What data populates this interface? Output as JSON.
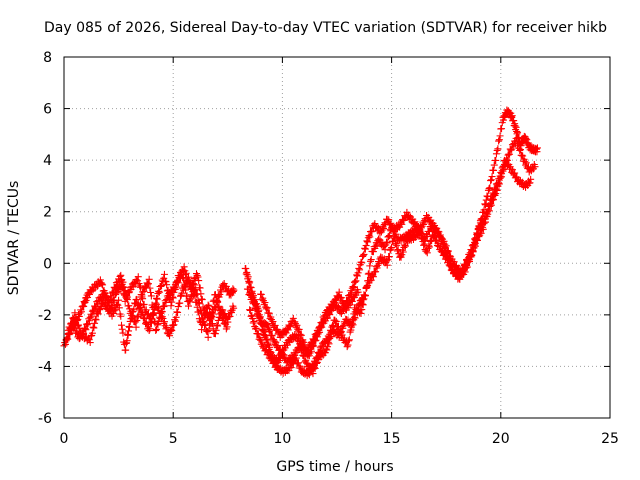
{
  "chart_data": {
    "type": "scatter",
    "title": "Day 085 of 2026, Sidereal Day-to-day VTEC variation (SDTVAR) for receiver hikb",
    "xlabel": "GPS time / hours",
    "ylabel": "SDTVAR / TECUs",
    "xlim": [
      0,
      25
    ],
    "ylim": [
      -6,
      8
    ],
    "xticks": [
      "0",
      "5",
      "10",
      "15",
      "20",
      "25"
    ],
    "yticks": [
      "-6",
      "-4",
      "-2",
      "0",
      "2",
      "4",
      "6",
      "8"
    ],
    "grid": true,
    "marker": "+",
    "series": [
      {
        "name": "SDTVAR",
        "color": "#ff0000",
        "traces": [
          {
            "x": [
              0.0,
              0.3,
              0.6,
              0.9,
              1.1,
              1.4,
              1.7,
              2.0,
              2.3,
              2.6,
              2.8,
              3.1,
              3.4,
              3.7,
              4.0,
              4.3,
              4.6,
              4.9,
              5.2,
              5.5,
              5.8,
              6.1,
              6.4,
              6.7,
              7.0,
              7.3,
              7.6,
              7.8
            ],
            "y": [
              -3.2,
              -2.6,
              -2.2,
              -1.6,
              -1.2,
              -0.9,
              -0.7,
              -1.6,
              -1.0,
              -0.5,
              -1.4,
              -0.9,
              -0.6,
              -1.8,
              -2.2,
              -1.2,
              -0.5,
              -1.6,
              -0.6,
              -0.2,
              -1.0,
              -0.4,
              -1.8,
              -2.2,
              -1.5,
              -0.8,
              -1.2,
              -1.0
            ]
          },
          {
            "x": [
              0.1,
              0.4,
              0.7,
              1.0,
              1.3,
              1.6,
              1.9,
              2.2,
              2.5,
              2.8,
              3.0,
              3.3,
              3.6,
              3.9,
              4.2,
              4.5,
              4.8,
              5.1,
              5.4,
              5.7,
              6.0,
              6.3,
              6.6,
              6.9,
              7.2,
              7.5,
              7.8
            ],
            "y": [
              -3.0,
              -2.4,
              -2.9,
              -2.5,
              -1.9,
              -1.4,
              -1.2,
              -2.0,
              -1.5,
              -3.4,
              -2.4,
              -1.4,
              -2.0,
              -2.6,
              -1.6,
              -2.1,
              -2.8,
              -2.2,
              -1.1,
              -0.6,
              -1.3,
              -2.5,
              -1.6,
              -2.8,
              -1.8,
              -2.2,
              -1.6
            ]
          },
          {
            "x": [
              0.2,
              0.5,
              0.8,
              1.2,
              1.5,
              1.8,
              2.1,
              2.4,
              2.7,
              3.0,
              3.3,
              3.6,
              3.9,
              4.2,
              4.5,
              4.8,
              5.1,
              5.4,
              5.7,
              6.0,
              6.3,
              6.6,
              6.9,
              7.2,
              7.5
            ],
            "y": [
              -2.6,
              -2.0,
              -2.8,
              -3.0,
              -2.0,
              -1.5,
              -1.9,
              -1.1,
              -0.8,
              -1.8,
              -2.4,
              -1.1,
              -0.7,
              -2.6,
              -1.8,
              -1.2,
              -0.9,
              -0.4,
              -1.6,
              -0.9,
              -2.0,
              -2.8,
              -1.2,
              -2.0,
              -2.6
            ]
          },
          {
            "x": [
              8.3,
              8.5,
              8.7,
              8.9,
              9.1,
              9.3,
              9.5,
              9.8,
              10.0,
              10.3,
              10.6,
              10.9,
              11.2,
              11.5,
              11.8,
              12.1,
              12.4,
              12.7,
              13.0,
              13.3,
              13.6,
              13.9,
              14.2,
              14.5,
              14.8,
              15.1,
              15.4,
              15.7,
              16.0,
              16.3,
              16.6,
              16.9,
              17.2,
              17.5,
              17.8,
              18.1,
              18.3,
              18.6,
              18.9,
              19.2,
              19.5,
              19.8,
              20.1,
              20.3,
              20.5,
              20.7,
              20.9,
              21.1,
              21.3,
              21.5,
              21.7
            ],
            "y": [
              -0.2,
              -0.8,
              -1.4,
              -1.8,
              -2.6,
              -3.0,
              -3.6,
              -3.8,
              -3.4,
              -3.0,
              -2.8,
              -3.2,
              -3.6,
              -3.0,
              -2.4,
              -2.0,
              -1.6,
              -1.9,
              -1.4,
              -0.8,
              0.0,
              0.9,
              1.5,
              1.2,
              1.7,
              1.3,
              1.5,
              1.9,
              1.6,
              1.3,
              1.8,
              1.5,
              1.1,
              0.4,
              -0.3,
              -0.6,
              -0.2,
              0.4,
              1.1,
              2.0,
              3.0,
              4.2,
              5.6,
              5.9,
              5.7,
              5.2,
              4.6,
              4.9,
              4.5,
              4.4,
              4.4
            ]
          },
          {
            "x": [
              8.4,
              8.7,
              9.0,
              9.3,
              9.6,
              9.9,
              10.2,
              10.5,
              10.8,
              11.1,
              11.4,
              11.7,
              12.0,
              12.3,
              12.6,
              12.9,
              13.2,
              13.5,
              13.8,
              14.1,
              14.4,
              14.7,
              15.0,
              15.3,
              15.6,
              15.9,
              16.2,
              16.5,
              16.8,
              17.1,
              17.4,
              17.7,
              18.0,
              18.3,
              18.6,
              18.9,
              19.2,
              19.5,
              19.8,
              20.1,
              20.4,
              20.7,
              21.0,
              21.3,
              21.6
            ],
            "y": [
              -1.0,
              -1.6,
              -2.3,
              -2.4,
              -3.0,
              -3.4,
              -3.8,
              -3.6,
              -3.2,
              -3.9,
              -4.2,
              -3.6,
              -3.4,
              -2.6,
              -2.8,
              -2.2,
              -2.4,
              -1.6,
              -1.2,
              0.4,
              0.9,
              0.6,
              1.4,
              0.9,
              1.0,
              1.2,
              1.4,
              0.9,
              1.4,
              1.2,
              0.8,
              0.2,
              -0.2,
              -0.4,
              0.2,
              0.9,
              1.4,
              2.2,
              2.8,
              3.6,
              4.3,
              4.8,
              4.1,
              3.6,
              3.8
            ]
          },
          {
            "x": [
              8.5,
              8.8,
              9.1,
              9.4,
              9.7,
              10.0,
              10.3,
              10.6,
              10.9,
              11.2,
              11.5,
              11.8,
              12.1,
              12.4,
              12.7,
              13.0,
              13.3,
              13.6,
              13.9,
              14.2,
              14.5,
              14.8,
              15.1,
              15.4,
              15.7,
              16.0,
              16.3,
              16.6,
              16.9,
              17.2,
              17.5,
              17.8,
              18.1,
              18.4,
              18.7,
              19.0,
              19.3,
              19.6,
              19.9,
              20.2,
              20.5,
              20.8,
              21.1,
              21.4
            ],
            "y": [
              -1.8,
              -2.6,
              -3.2,
              -3.6,
              -4.0,
              -4.2,
              -4.1,
              -3.7,
              -4.2,
              -4.3,
              -3.8,
              -3.2,
              -2.9,
              -2.2,
              -2.8,
              -3.2,
              -1.8,
              -1.9,
              -0.8,
              -0.4,
              0.2,
              0.0,
              1.0,
              0.2,
              0.9,
              1.0,
              1.2,
              0.4,
              1.1,
              0.6,
              0.2,
              -0.3,
              -0.5,
              0.0,
              0.4,
              1.4,
              1.8,
              2.6,
              3.2,
              4.0,
              3.6,
              3.2,
              3.0,
              3.2
            ]
          },
          {
            "x": [
              9.0,
              9.3,
              9.6,
              9.9,
              10.2,
              10.5,
              10.8,
              11.1,
              11.4,
              11.7,
              12.0,
              12.3,
              12.6,
              12.9,
              13.2,
              13.5
            ],
            "y": [
              -1.2,
              -1.8,
              -2.4,
              -2.8,
              -2.6,
              -2.2,
              -2.7,
              -3.4,
              -3.0,
              -2.5,
              -1.9,
              -1.6,
              -1.2,
              -1.8,
              -1.4,
              -1.0
            ]
          }
        ]
      }
    ]
  }
}
